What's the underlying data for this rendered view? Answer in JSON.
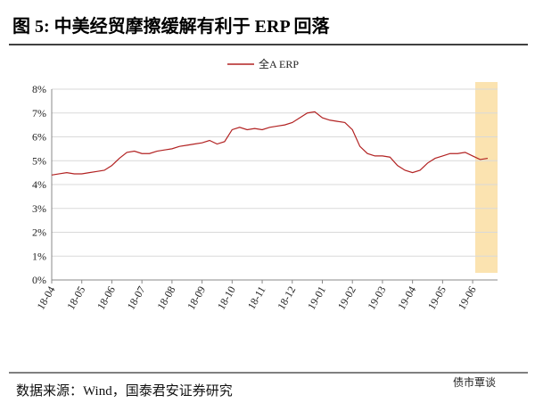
{
  "chart_data": {
    "type": "line",
    "title": "图 5:  中美经贸摩擦缓解有利于 ERP 回落",
    "source": "数据来源：Wind，国泰君安证券研究",
    "watermark": "债市覃谈",
    "categories": [
      "18-04",
      null,
      null,
      null,
      "18-05",
      null,
      null,
      null,
      "18-06",
      null,
      null,
      null,
      "18-07",
      null,
      null,
      null,
      "18-08",
      null,
      null,
      null,
      "18-09",
      null,
      null,
      null,
      "18-10",
      null,
      null,
      null,
      "18-11",
      null,
      null,
      null,
      "18-12",
      null,
      null,
      null,
      "19-01",
      null,
      null,
      null,
      "19-02",
      null,
      null,
      null,
      "19-03",
      null,
      null,
      null,
      "19-04",
      null,
      null,
      null,
      "19-05",
      null,
      null,
      null,
      "19-06",
      null,
      null
    ],
    "series": [
      {
        "name": "全A ERP",
        "color": "#b22222",
        "values": [
          4.4,
          4.45,
          4.5,
          4.45,
          4.45,
          4.5,
          4.55,
          4.6,
          4.8,
          5.1,
          5.35,
          5.4,
          5.3,
          5.3,
          5.4,
          5.45,
          5.5,
          5.6,
          5.65,
          5.7,
          5.75,
          5.85,
          5.7,
          5.8,
          6.3,
          6.4,
          6.3,
          6.35,
          6.3,
          6.4,
          6.45,
          6.5,
          6.6,
          6.8,
          7.0,
          7.05,
          6.8,
          6.7,
          6.65,
          6.6,
          6.3,
          5.6,
          5.3,
          5.2,
          5.2,
          5.15,
          4.8,
          4.6,
          4.5,
          4.6,
          4.9,
          5.1,
          5.2,
          5.3,
          5.3,
          5.35,
          5.2,
          5.05,
          5.1
        ]
      }
    ],
    "ylim": [
      0,
      8
    ],
    "yticks": [
      {
        "value": 0,
        "label": "0%"
      },
      {
        "value": 1,
        "label": "1%"
      },
      {
        "value": 2,
        "label": "2%"
      },
      {
        "value": 3,
        "label": "3%"
      },
      {
        "value": 4,
        "label": "4%"
      },
      {
        "value": 5,
        "label": "5%"
      },
      {
        "value": 6,
        "label": "6%"
      },
      {
        "value": 7,
        "label": "7%"
      },
      {
        "value": 8,
        "label": "8%"
      }
    ],
    "grid": true
  }
}
